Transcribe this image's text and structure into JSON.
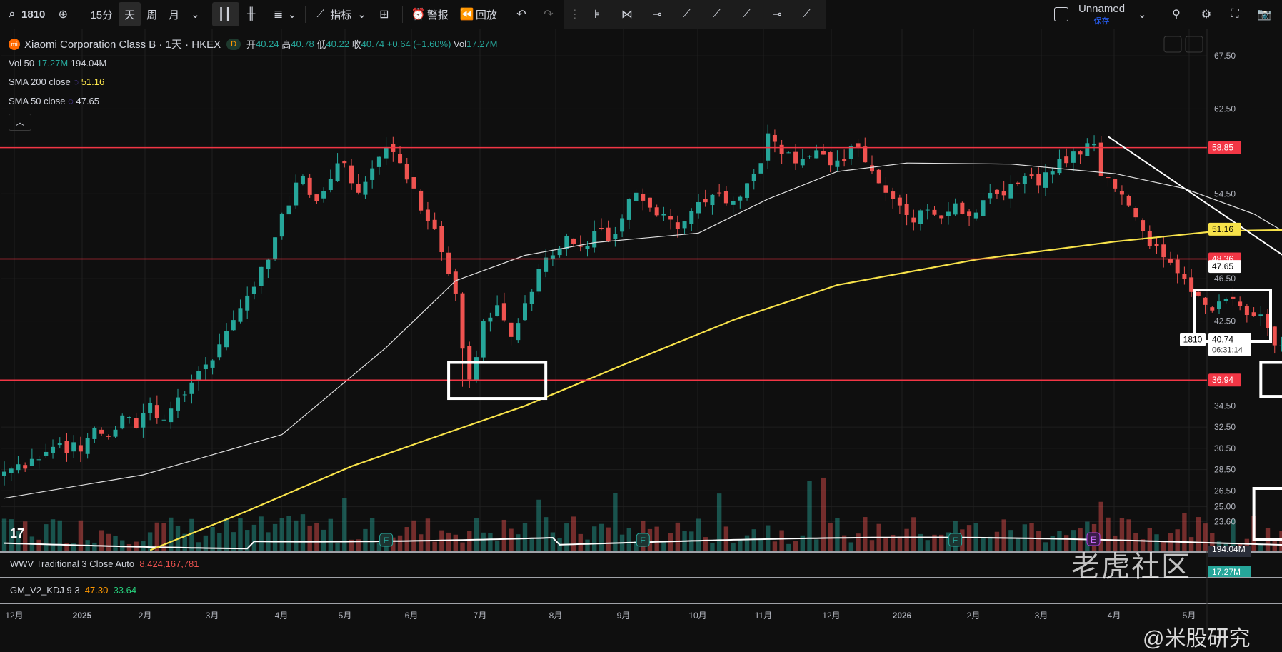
{
  "toolbar": {
    "symbol": "1810",
    "intervals": [
      "15分",
      "天",
      "周",
      "月"
    ],
    "active_interval": "天",
    "indicators_label": "指标",
    "alert_label": "警报",
    "replay_label": "回放",
    "layout_name": "Unnamed",
    "layout_status": "保存"
  },
  "legend": {
    "title": "Xiaomi Corporation Class B · 1天 · HKEX",
    "logo_letter": "mi",
    "d_badge": "D",
    "open_label": "开",
    "open": "40.24",
    "high_label": "高",
    "high": "40.78",
    "low_label": "低",
    "low": "40.22",
    "close_label": "收",
    "close": "40.74",
    "change": "+0.64 (+1.60%)",
    "vol_label": "Vol",
    "vol": "17.27M",
    "vol50_label": "Vol 50",
    "vol50_a": "17.27M",
    "vol50_b": "194.04M",
    "sma200_label": "SMA 200 close",
    "sma200_value": "51.16",
    "sma50_label": "SMA 50 close",
    "sma50_value": "47.65"
  },
  "panes": {
    "wwv_label": "WWV Traditional 3 Close Auto",
    "wwv_value": "8,424,167,781",
    "kdj_label": "GM_V2_KDJ 9 3",
    "kdj_v1": "47.30",
    "kdj_v2": "33.64"
  },
  "watermarks": {
    "tiger": "老虎社区",
    "author": "@米股研究"
  },
  "colors": {
    "up": "#26a69a",
    "down": "#ef5350",
    "sma200": "#f7e24a",
    "sma50": "#e0e0e0",
    "hline": "#f23645",
    "bg": "#0f0f0f"
  },
  "chart_data": {
    "type": "candlestick",
    "symbol": "1810",
    "y_range": [
      20.8,
      70.0
    ],
    "y_ticks": [
      "67.50",
      "62.50",
      "58.85",
      "54.50",
      "51.16",
      "48.36",
      "47.65",
      "46.50",
      "42.50",
      "40.74",
      "36.94",
      "34.50",
      "32.50",
      "30.50",
      "28.50",
      "26.50",
      "25.00",
      "23.60",
      "194.04M",
      "17.27M"
    ],
    "x_ticks": [
      "12月",
      "2025",
      "2月",
      "3月",
      "4月",
      "5月",
      "6月",
      "7月",
      "8月",
      "9月",
      "10月",
      "11月",
      "12月",
      "2026",
      "2月",
      "3月",
      "4月",
      "5月"
    ],
    "horizontal_lines": [
      58.85,
      48.36,
      36.94
    ],
    "price_labels": [
      {
        "value": 58.85,
        "text": "58.85"
      },
      {
        "value": 51.16,
        "text": "51.16"
      },
      {
        "value": 48.36,
        "text": "48.36"
      },
      {
        "value": 47.65,
        "text": "47.65"
      },
      {
        "value": 36.94,
        "text": "36.94"
      }
    ],
    "last_price": {
      "symbol": "1810",
      "value": 40.74,
      "text": "40.74",
      "countdown": "06:31:14"
    },
    "volume_labels": [
      "194.04M",
      "17.27M"
    ],
    "close_path": [
      [
        0,
        28.3
      ],
      [
        4,
        29.5
      ],
      [
        8,
        31.0
      ],
      [
        11,
        30.2
      ],
      [
        13,
        32.4
      ],
      [
        15,
        31.6
      ],
      [
        17,
        33.6
      ],
      [
        19,
        32.4
      ],
      [
        21,
        34.8
      ],
      [
        23,
        33.2
      ],
      [
        25,
        35.3
      ],
      [
        27,
        36.7
      ],
      [
        29,
        38.4
      ],
      [
        31,
        40.3
      ],
      [
        33,
        42.6
      ],
      [
        35,
        44.9
      ],
      [
        37,
        47.6
      ],
      [
        39,
        50.4
      ],
      [
        41,
        53.4
      ],
      [
        43,
        56.2
      ],
      [
        45,
        53.8
      ],
      [
        47,
        55.9
      ],
      [
        49,
        57.4
      ],
      [
        51,
        54.6
      ],
      [
        53,
        56.9
      ],
      [
        55,
        58.9
      ],
      [
        57,
        57.4
      ],
      [
        59,
        55.0
      ],
      [
        61,
        51.9
      ],
      [
        63,
        49.0
      ],
      [
        65,
        45.1
      ],
      [
        66,
        39.9
      ],
      [
        67,
        37.0
      ],
      [
        68,
        39.1
      ],
      [
        69,
        42.5
      ],
      [
        71,
        44.0
      ],
      [
        73,
        41.0
      ],
      [
        75,
        44.2
      ],
      [
        77,
        47.4
      ],
      [
        79,
        48.7
      ],
      [
        81,
        50.5
      ],
      [
        83,
        49.5
      ],
      [
        85,
        51.0
      ],
      [
        87,
        50.0
      ],
      [
        89,
        52.2
      ],
      [
        91,
        54.6
      ],
      [
        93,
        53.2
      ],
      [
        95,
        52.6
      ],
      [
        97,
        51.2
      ],
      [
        99,
        52.9
      ],
      [
        101,
        53.7
      ],
      [
        103,
        54.6
      ],
      [
        105,
        53.8
      ],
      [
        107,
        55.5
      ],
      [
        109,
        57.4
      ],
      [
        110,
        60.2
      ],
      [
        111,
        59.4
      ],
      [
        113,
        58.4
      ],
      [
        115,
        57.8
      ],
      [
        117,
        58.6
      ],
      [
        119,
        57.2
      ],
      [
        121,
        57.6
      ],
      [
        123,
        58.9
      ],
      [
        125,
        56.6
      ],
      [
        127,
        54.6
      ],
      [
        129,
        53.4
      ],
      [
        131,
        51.8
      ],
      [
        133,
        53.0
      ],
      [
        135,
        52.2
      ],
      [
        137,
        53.6
      ],
      [
        139,
        52.4
      ],
      [
        141,
        53.9
      ],
      [
        143,
        54.5
      ],
      [
        145,
        55.4
      ],
      [
        147,
        56.2
      ],
      [
        149,
        55.3
      ],
      [
        151,
        56.6
      ],
      [
        153,
        57.4
      ],
      [
        155,
        58.2
      ],
      [
        157,
        59.2
      ],
      [
        158,
        56.2
      ],
      [
        160,
        55.0
      ],
      [
        162,
        53.4
      ],
      [
        164,
        51.0
      ],
      [
        166,
        49.6
      ],
      [
        168,
        48.0
      ],
      [
        170,
        46.5
      ],
      [
        172,
        44.9
      ],
      [
        174,
        43.5
      ],
      [
        176,
        44.6
      ],
      [
        178,
        43.9
      ],
      [
        180,
        43.0
      ],
      [
        182,
        41.8
      ],
      [
        184,
        40.2
      ],
      [
        186,
        38.4
      ],
      [
        188,
        39.3
      ],
      [
        189,
        40.1
      ],
      [
        191,
        40.5
      ],
      [
        192,
        40.74
      ]
    ],
    "sma50_path": [
      [
        0,
        25.8
      ],
      [
        20,
        28.0
      ],
      [
        40,
        31.8
      ],
      [
        55,
        40.0
      ],
      [
        65,
        46.3
      ],
      [
        75,
        48.7
      ],
      [
        85,
        49.9
      ],
      [
        100,
        50.8
      ],
      [
        110,
        54.0
      ],
      [
        120,
        56.6
      ],
      [
        130,
        57.4
      ],
      [
        145,
        57.3
      ],
      [
        160,
        56.4
      ],
      [
        170,
        55.0
      ],
      [
        180,
        52.6
      ],
      [
        188,
        49.5
      ],
      [
        192,
        47.65
      ]
    ],
    "sma200_path": [
      [
        21,
        20.9
      ],
      [
        35,
        24.6
      ],
      [
        50,
        28.8
      ],
      [
        60,
        31.1
      ],
      [
        75,
        34.5
      ],
      [
        90,
        38.6
      ],
      [
        105,
        42.6
      ],
      [
        120,
        45.9
      ],
      [
        140,
        48.3
      ],
      [
        160,
        50.0
      ],
      [
        175,
        51.0
      ],
      [
        192,
        51.16
      ]
    ],
    "trend_line": {
      "from": [
        159,
        59.9
      ],
      "to": [
        247,
        20.8
      ]
    },
    "volume_ma_level": 0.55,
    "earnings_markers": [
      55,
      92,
      137,
      187
    ],
    "highlight_boxes": [
      {
        "bar_from": 64,
        "bar_to": 78,
        "price_from": 35.2,
        "price_to": 38.6
      },
      {
        "bar_from": 181,
        "bar_to": 196,
        "price_from": 35.4,
        "price_to": 38.6
      },
      {
        "bar_from": 180,
        "bar_to": 195,
        "pane": "volume"
      }
    ]
  }
}
